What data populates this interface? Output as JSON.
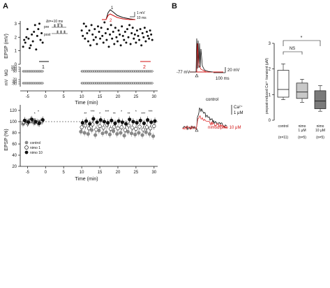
{
  "panels": {
    "a": "A",
    "b": "B"
  },
  "panel_a": {
    "top_chart": {
      "ylabel": "EPSP (mV)",
      "yticks": [
        "0",
        "1",
        "2",
        "3"
      ],
      "ylim": [
        0,
        3.2
      ],
      "rm_label": "MΩ",
      "vm_label": "mV",
      "rm_ticks": [
        "150",
        "100",
        "50"
      ],
      "vm_ticks": [
        "-70",
        "-80",
        "-90"
      ],
      "xticks": [
        "-5",
        "0",
        "5",
        "10",
        "15",
        "20",
        "25",
        "30"
      ],
      "xlabel": "Time (min)",
      "marker_1": "1",
      "marker_2": "2",
      "inset": {
        "delta_t": "Δt=+10 ms",
        "pre": "pre",
        "post": "post",
        "scale_v": "1 mV",
        "scale_t": "10 ms",
        "trace_1": "1",
        "trace_2": "2"
      }
    },
    "bottom_chart": {
      "ylabel": "EPSP (%)",
      "yticks": [
        "20",
        "40",
        "60",
        "80",
        "100",
        "120"
      ],
      "ylim": [
        20,
        130
      ],
      "xticks": [
        "-5",
        "0",
        "5",
        "10",
        "15",
        "20",
        "25",
        "30"
      ],
      "xlabel": "Time (min)",
      "legend": [
        "control",
        "nimo 1",
        "nimo 10"
      ],
      "sig_marks": [
        "*",
        "*",
        "**",
        "***",
        "*",
        "***",
        "**",
        "*",
        "**",
        "*",
        "***",
        "***"
      ]
    }
  },
  "panel_b": {
    "trace_top": {
      "vrest": "-77 mV",
      "scale_v": "20 mV",
      "scale_t": "100 ms"
    },
    "trace_bottom": {
      "control": "control",
      "nimo": "nimodipine 10 μM",
      "scale_top": "Ca²⁺",
      "scale_bot": "1 μM"
    },
    "box_chart": {
      "ylabel": "prepost-induced Ca²⁺ transient (μM)",
      "yticks": [
        "0",
        "1",
        "2",
        "3"
      ],
      "groups": [
        "control",
        "nimo",
        "nimo"
      ],
      "group_sub": [
        "",
        "1 μM",
        "10 μM"
      ],
      "n": [
        "(n=11)",
        "(n=5)",
        "(n=5)"
      ],
      "ns": "NS",
      "sig": "*"
    }
  },
  "chart_data": [
    {
      "type": "scatter",
      "xlabel": "Time (min)",
      "ylabel": "EPSP (mV)",
      "xlim": [
        -7,
        31
      ],
      "ylim": [
        0,
        3.2
      ],
      "series": [
        {
          "x": [
            -6.2,
            -5.9,
            -5.6,
            -5.3,
            -5.0,
            -4.7,
            -4.4,
            -4.1,
            -3.8,
            -3.5,
            -3.2,
            -2.9,
            -2.6,
            -2.3,
            -2.0,
            -1.7,
            -1.4,
            -1.1,
            -0.8,
            10.0,
            10.3,
            10.6,
            10.9,
            11.2,
            11.5,
            11.8,
            12.1,
            12.4,
            12.7,
            13.0,
            13.3,
            13.6,
            13.9,
            14.2,
            14.5,
            14.8,
            15.1,
            15.4,
            15.7,
            16.0,
            16.3,
            16.6,
            16.9,
            17.2,
            17.5,
            17.8,
            18.1,
            18.4,
            18.7,
            19.0,
            19.3,
            19.6,
            19.9,
            20.2,
            20.5,
            20.8,
            21.1,
            21.4,
            21.7,
            22.0,
            22.3,
            22.6,
            22.9,
            23.2,
            23.5,
            23.8,
            24.1,
            24.4,
            24.7,
            25.0,
            25.3,
            25.6,
            25.9,
            26.2,
            26.5,
            26.8,
            27.1,
            27.4,
            27.7,
            28.0,
            28.3,
            28.6,
            28.9,
            29.2,
            29.5
          ],
          "y": [
            1.3,
            1.8,
            1.6,
            2.0,
            2.6,
            1.9,
            1.2,
            1.4,
            2.2,
            1.7,
            2.4,
            2.9,
            1.1,
            2.1,
            2.6,
            3.0,
            1.8,
            2.3,
            1.6,
            2.5,
            2.1,
            3.0,
            1.9,
            2.8,
            2.3,
            1.7,
            2.5,
            1.4,
            2.9,
            2.2,
            1.8,
            2.6,
            2.0,
            1.5,
            2.8,
            2.4,
            1.9,
            2.7,
            2.1,
            1.6,
            3.1,
            2.3,
            1.8,
            2.6,
            1.3,
            2.2,
            2.9,
            1.9,
            2.4,
            1.5,
            2.7,
            2.0,
            1.7,
            2.5,
            2.2,
            1.4,
            2.8,
            2.1,
            1.8,
            2.4,
            1.6,
            2.6,
            2.0,
            2.9,
            1.5,
            2.3,
            2.7,
            1.9,
            2.2,
            1.6,
            2.5,
            2.1,
            1.8,
            2.6,
            1.4,
            2.3,
            2.0,
            2.7,
            1.7,
            2.4,
            2.1,
            1.9,
            2.5,
            2.2,
            1.8
          ]
        }
      ]
    },
    {
      "type": "scatter",
      "xlabel": "Time (min)",
      "ylabel": "EPSP (%)",
      "xlim": [
        -7,
        31
      ],
      "ylim": [
        20,
        130
      ],
      "series": [
        {
          "name": "control",
          "x": [
            -6,
            -5,
            -4,
            -3,
            -2,
            -1,
            10,
            11,
            12,
            13,
            14,
            15,
            16,
            17,
            18,
            19,
            20,
            21,
            22,
            23,
            24,
            25,
            26,
            27,
            28,
            29,
            30
          ],
          "y": [
            96,
            100,
            103,
            98,
            99,
            101,
            82,
            80,
            78,
            85,
            76,
            84,
            79,
            81,
            77,
            83,
            78,
            80,
            75,
            82,
            79,
            77,
            80,
            76,
            81,
            78,
            74
          ]
        },
        {
          "name": "nimo 1",
          "x": [
            -6,
            -5,
            -4,
            -3,
            -2,
            -1,
            10,
            11,
            12,
            13,
            14,
            15,
            16,
            17,
            18,
            19,
            20,
            21,
            22,
            23,
            24,
            25,
            26,
            27,
            28,
            29,
            30
          ],
          "y": [
            99,
            97,
            102,
            100,
            98,
            101,
            90,
            93,
            88,
            95,
            86,
            92,
            89,
            94,
            87,
            91,
            88,
            90,
            85,
            93,
            89,
            87,
            91,
            86,
            90,
            88,
            92
          ]
        },
        {
          "name": "nimo 10",
          "x": [
            -6,
            -5,
            -4,
            -3,
            -2,
            -1,
            10,
            11,
            12,
            13,
            14,
            15,
            16,
            17,
            18,
            19,
            20,
            21,
            22,
            23,
            24,
            25,
            26,
            27,
            28,
            29,
            30
          ],
          "y": [
            102,
            99,
            104,
            100,
            97,
            103,
            98,
            101,
            96,
            105,
            99,
            103,
            100,
            98,
            102,
            97,
            101,
            99,
            96,
            104,
            100,
            98,
            102,
            97,
            103,
            99,
            101
          ]
        }
      ]
    },
    {
      "type": "box",
      "ylabel": "prepost-induced Ca²⁺ transient (μM)",
      "categories": [
        "control",
        "nimo 1 μM",
        "nimo 10 μM"
      ],
      "ylim": [
        0,
        3
      ],
      "boxes": [
        {
          "min": 0.8,
          "q1": 0.9,
          "median": 1.2,
          "q3": 1.95,
          "max": 2.2
        },
        {
          "min": 0.7,
          "q1": 0.85,
          "median": 1.1,
          "q3": 1.45,
          "max": 1.6
        },
        {
          "min": 0.35,
          "q1": 0.45,
          "median": 0.75,
          "q3": 1.15,
          "max": 1.35
        }
      ]
    }
  ]
}
